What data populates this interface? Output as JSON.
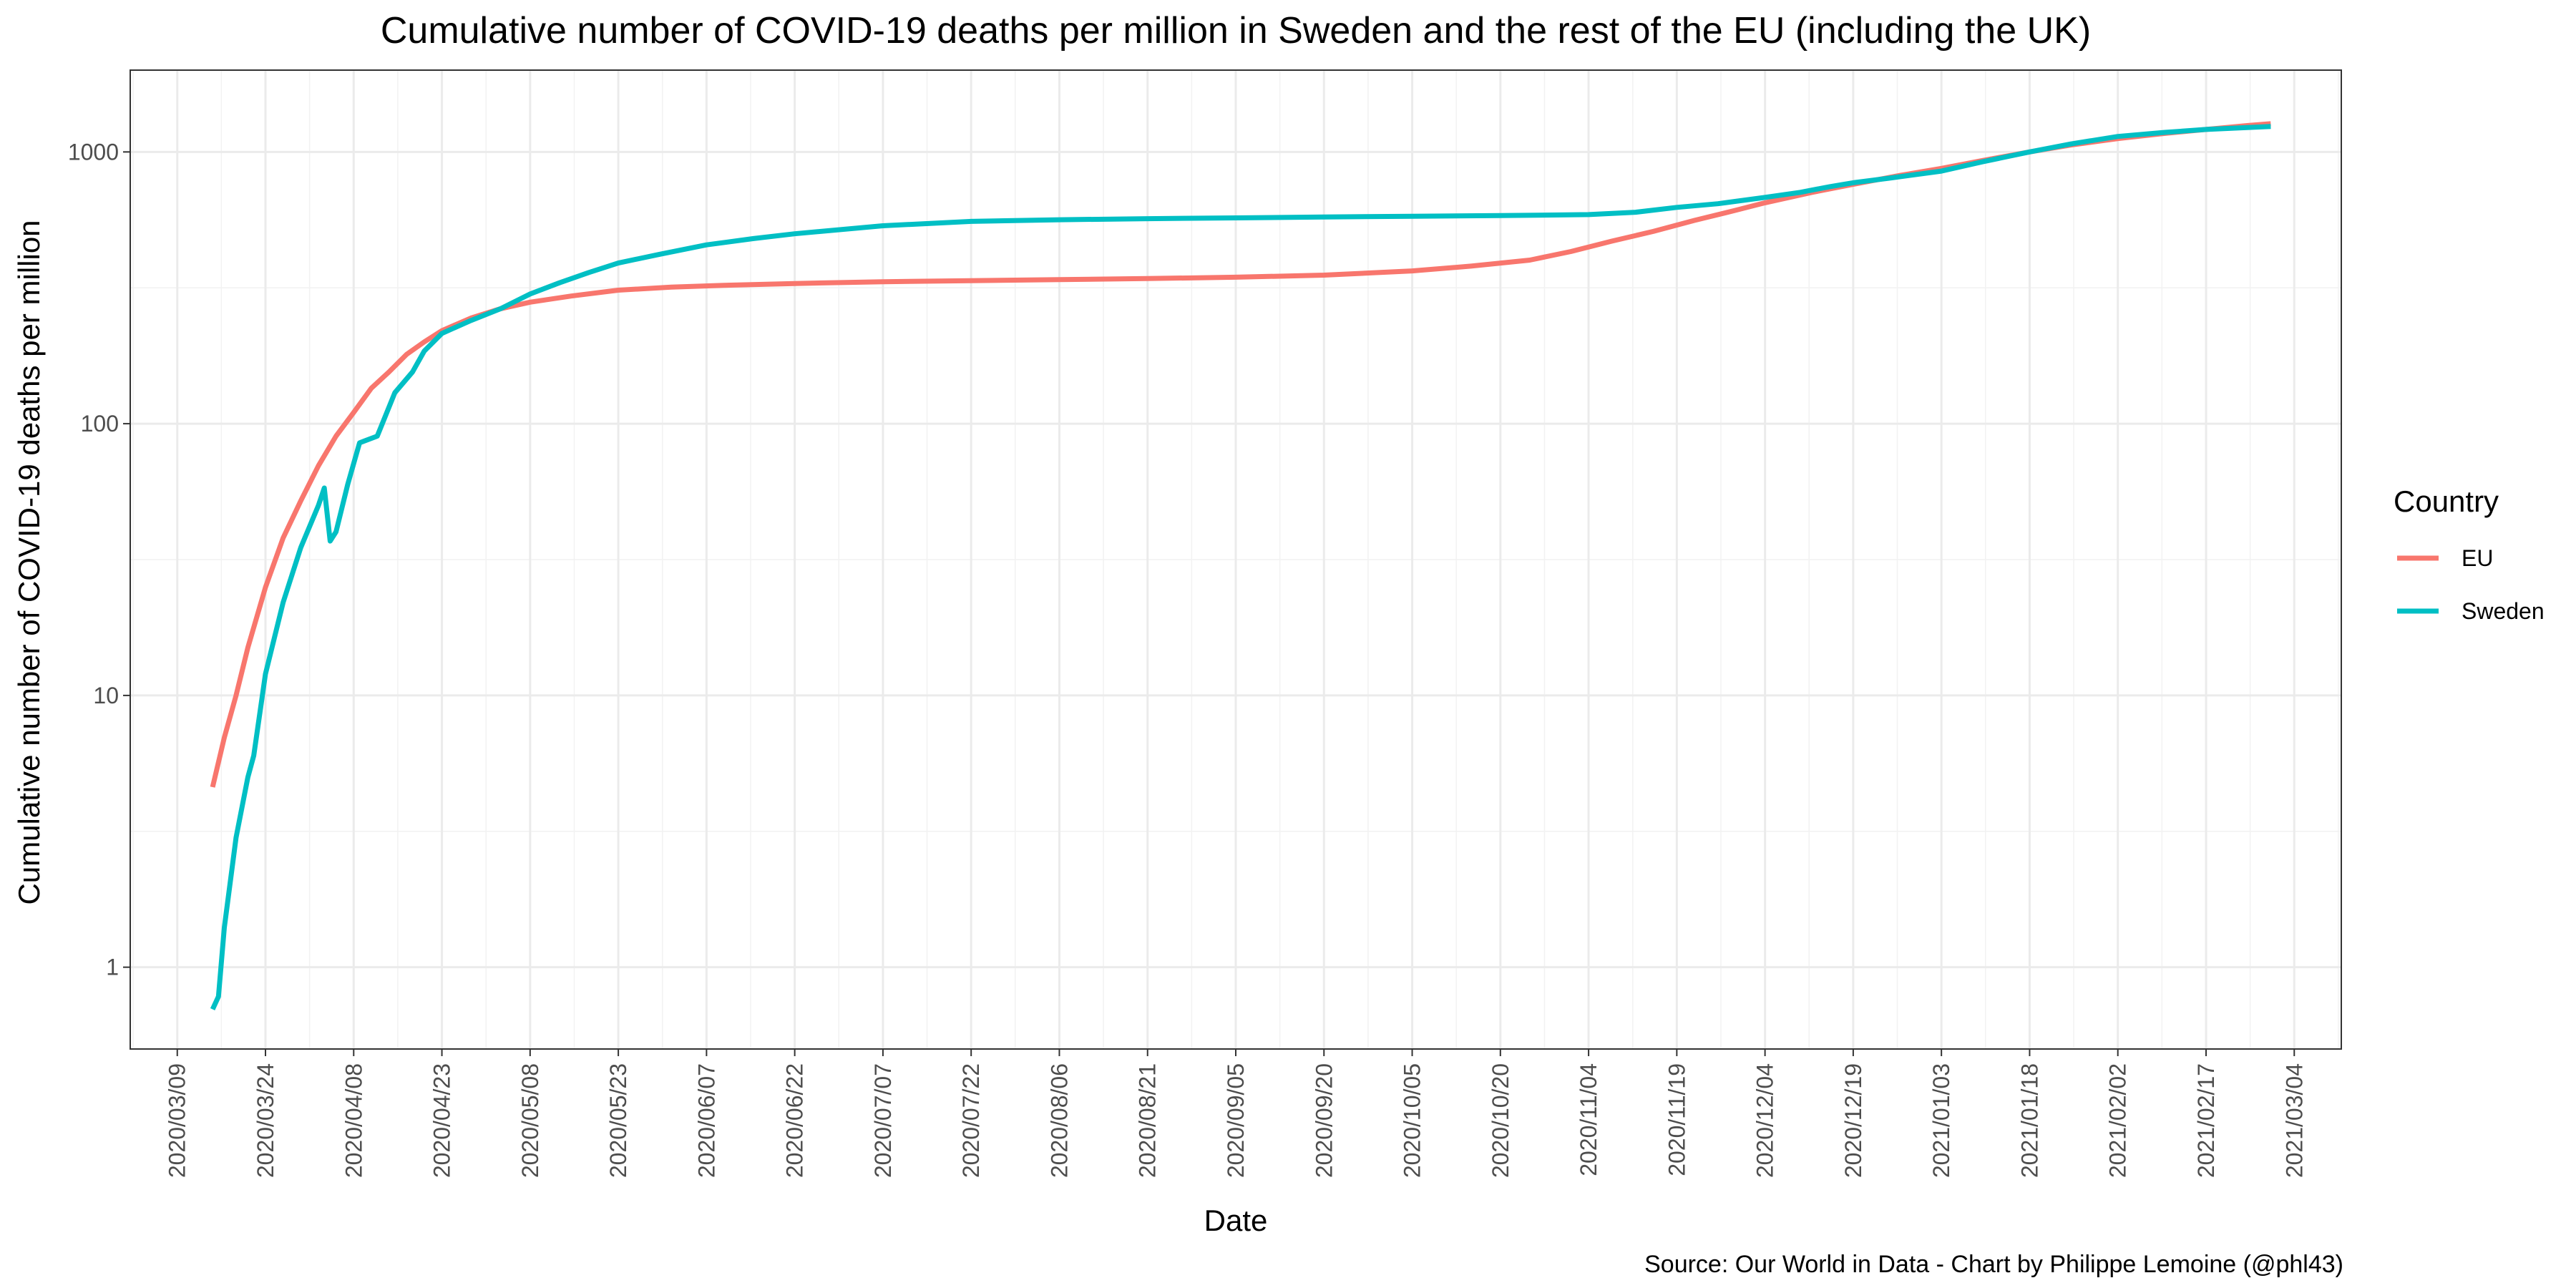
{
  "chart_data": {
    "type": "line",
    "title": "Cumulative number of COVID-19 deaths per million in Sweden and the rest of the EU (including the UK)",
    "xlabel": "Date",
    "ylabel": "Cumulative number of COVID-19 deaths per million",
    "caption": "Source: Our World in Data - Chart by Philippe Lemoine (@phl43)",
    "legend_title": "Country",
    "legend_position": "right",
    "x_scale": "date",
    "y_scale": "log10",
    "grid": true,
    "xlim": [
      "2020-03-01",
      "2021-03-12"
    ],
    "ylim": [
      0.5,
      2000
    ],
    "x_ticks": [
      "2020/03/09",
      "2020/03/24",
      "2020/04/08",
      "2020/04/23",
      "2020/05/08",
      "2020/05/23",
      "2020/06/07",
      "2020/06/22",
      "2020/07/07",
      "2020/07/22",
      "2020/08/06",
      "2020/08/21",
      "2020/09/05",
      "2020/09/20",
      "2020/10/05",
      "2020/10/20",
      "2020/11/04",
      "2020/11/19",
      "2020/12/04",
      "2020/12/19",
      "2021/01/03",
      "2021/01/18",
      "2021/02/02",
      "2021/02/17",
      "2021/03/04"
    ],
    "y_ticks": [
      1,
      10,
      100,
      1000
    ],
    "y_tick_labels": [
      "1",
      "10",
      "100",
      "1000"
    ],
    "series": [
      {
        "name": "EU",
        "color": "#F8766D",
        "points": [
          [
            "2020-03-15",
            4.6
          ],
          [
            "2020-03-17",
            7
          ],
          [
            "2020-03-19",
            10
          ],
          [
            "2020-03-21",
            15
          ],
          [
            "2020-03-24",
            25
          ],
          [
            "2020-03-27",
            38
          ],
          [
            "2020-03-30",
            52
          ],
          [
            "2020-04-02",
            70
          ],
          [
            "2020-04-05",
            90
          ],
          [
            "2020-04-08",
            110
          ],
          [
            "2020-04-11",
            135
          ],
          [
            "2020-04-14",
            155
          ],
          [
            "2020-04-17",
            180
          ],
          [
            "2020-04-20",
            200
          ],
          [
            "2020-04-23",
            220
          ],
          [
            "2020-04-28",
            245
          ],
          [
            "2020-05-03",
            265
          ],
          [
            "2020-05-08",
            280
          ],
          [
            "2020-05-15",
            295
          ],
          [
            "2020-05-23",
            310
          ],
          [
            "2020-06-01",
            318
          ],
          [
            "2020-06-10",
            323
          ],
          [
            "2020-06-22",
            328
          ],
          [
            "2020-07-07",
            333
          ],
          [
            "2020-07-22",
            336
          ],
          [
            "2020-08-06",
            339
          ],
          [
            "2020-08-21",
            342
          ],
          [
            "2020-09-05",
            346
          ],
          [
            "2020-09-20",
            352
          ],
          [
            "2020-10-05",
            365
          ],
          [
            "2020-10-15",
            380
          ],
          [
            "2020-10-25",
            400
          ],
          [
            "2020-11-01",
            430
          ],
          [
            "2020-11-08",
            470
          ],
          [
            "2020-11-15",
            510
          ],
          [
            "2020-11-22",
            560
          ],
          [
            "2020-11-29",
            610
          ],
          [
            "2020-12-04",
            650
          ],
          [
            "2020-12-12",
            710
          ],
          [
            "2020-12-19",
            760
          ],
          [
            "2020-12-27",
            820
          ],
          [
            "2021-01-03",
            870
          ],
          [
            "2021-01-10",
            930
          ],
          [
            "2021-01-18",
            1000
          ],
          [
            "2021-01-25",
            1060
          ],
          [
            "2021-02-02",
            1120
          ],
          [
            "2021-02-10",
            1170
          ],
          [
            "2021-02-17",
            1210
          ],
          [
            "2021-02-24",
            1250
          ],
          [
            "2021-02-28",
            1270
          ]
        ]
      },
      {
        "name": "Sweden",
        "color": "#00BFC4",
        "points": [
          [
            "2020-03-15",
            0.7
          ],
          [
            "2020-03-16",
            0.78
          ],
          [
            "2020-03-17",
            1.4
          ],
          [
            "2020-03-19",
            3
          ],
          [
            "2020-03-21",
            5
          ],
          [
            "2020-03-22",
            6
          ],
          [
            "2020-03-24",
            12
          ],
          [
            "2020-03-27",
            22
          ],
          [
            "2020-03-30",
            35
          ],
          [
            "2020-04-02",
            50
          ],
          [
            "2020-04-03",
            58
          ],
          [
            "2020-04-04",
            37
          ],
          [
            "2020-04-05",
            40
          ],
          [
            "2020-04-07",
            60
          ],
          [
            "2020-04-09",
            85
          ],
          [
            "2020-04-12",
            90
          ],
          [
            "2020-04-15",
            130
          ],
          [
            "2020-04-18",
            155
          ],
          [
            "2020-04-20",
            185
          ],
          [
            "2020-04-23",
            215
          ],
          [
            "2020-04-28",
            240
          ],
          [
            "2020-05-03",
            265
          ],
          [
            "2020-05-08",
            300
          ],
          [
            "2020-05-13",
            330
          ],
          [
            "2020-05-18",
            360
          ],
          [
            "2020-05-23",
            390
          ],
          [
            "2020-05-30",
            420
          ],
          [
            "2020-06-07",
            455
          ],
          [
            "2020-06-15",
            480
          ],
          [
            "2020-06-22",
            500
          ],
          [
            "2020-07-07",
            535
          ],
          [
            "2020-07-22",
            555
          ],
          [
            "2020-08-06",
            563
          ],
          [
            "2020-08-21",
            568
          ],
          [
            "2020-09-05",
            572
          ],
          [
            "2020-09-20",
            576
          ],
          [
            "2020-10-05",
            580
          ],
          [
            "2020-10-20",
            583
          ],
          [
            "2020-11-04",
            588
          ],
          [
            "2020-11-12",
            600
          ],
          [
            "2020-11-19",
            625
          ],
          [
            "2020-11-26",
            645
          ],
          [
            "2020-12-04",
            680
          ],
          [
            "2020-12-10",
            710
          ],
          [
            "2020-12-15",
            745
          ],
          [
            "2020-12-19",
            770
          ],
          [
            "2020-12-25",
            800
          ],
          [
            "2021-01-03",
            850
          ],
          [
            "2021-01-10",
            920
          ],
          [
            "2021-01-18",
            1000
          ],
          [
            "2021-01-25",
            1070
          ],
          [
            "2021-02-02",
            1140
          ],
          [
            "2021-02-10",
            1180
          ],
          [
            "2021-02-17",
            1210
          ],
          [
            "2021-02-24",
            1230
          ],
          [
            "2021-02-28",
            1240
          ]
        ]
      }
    ]
  }
}
